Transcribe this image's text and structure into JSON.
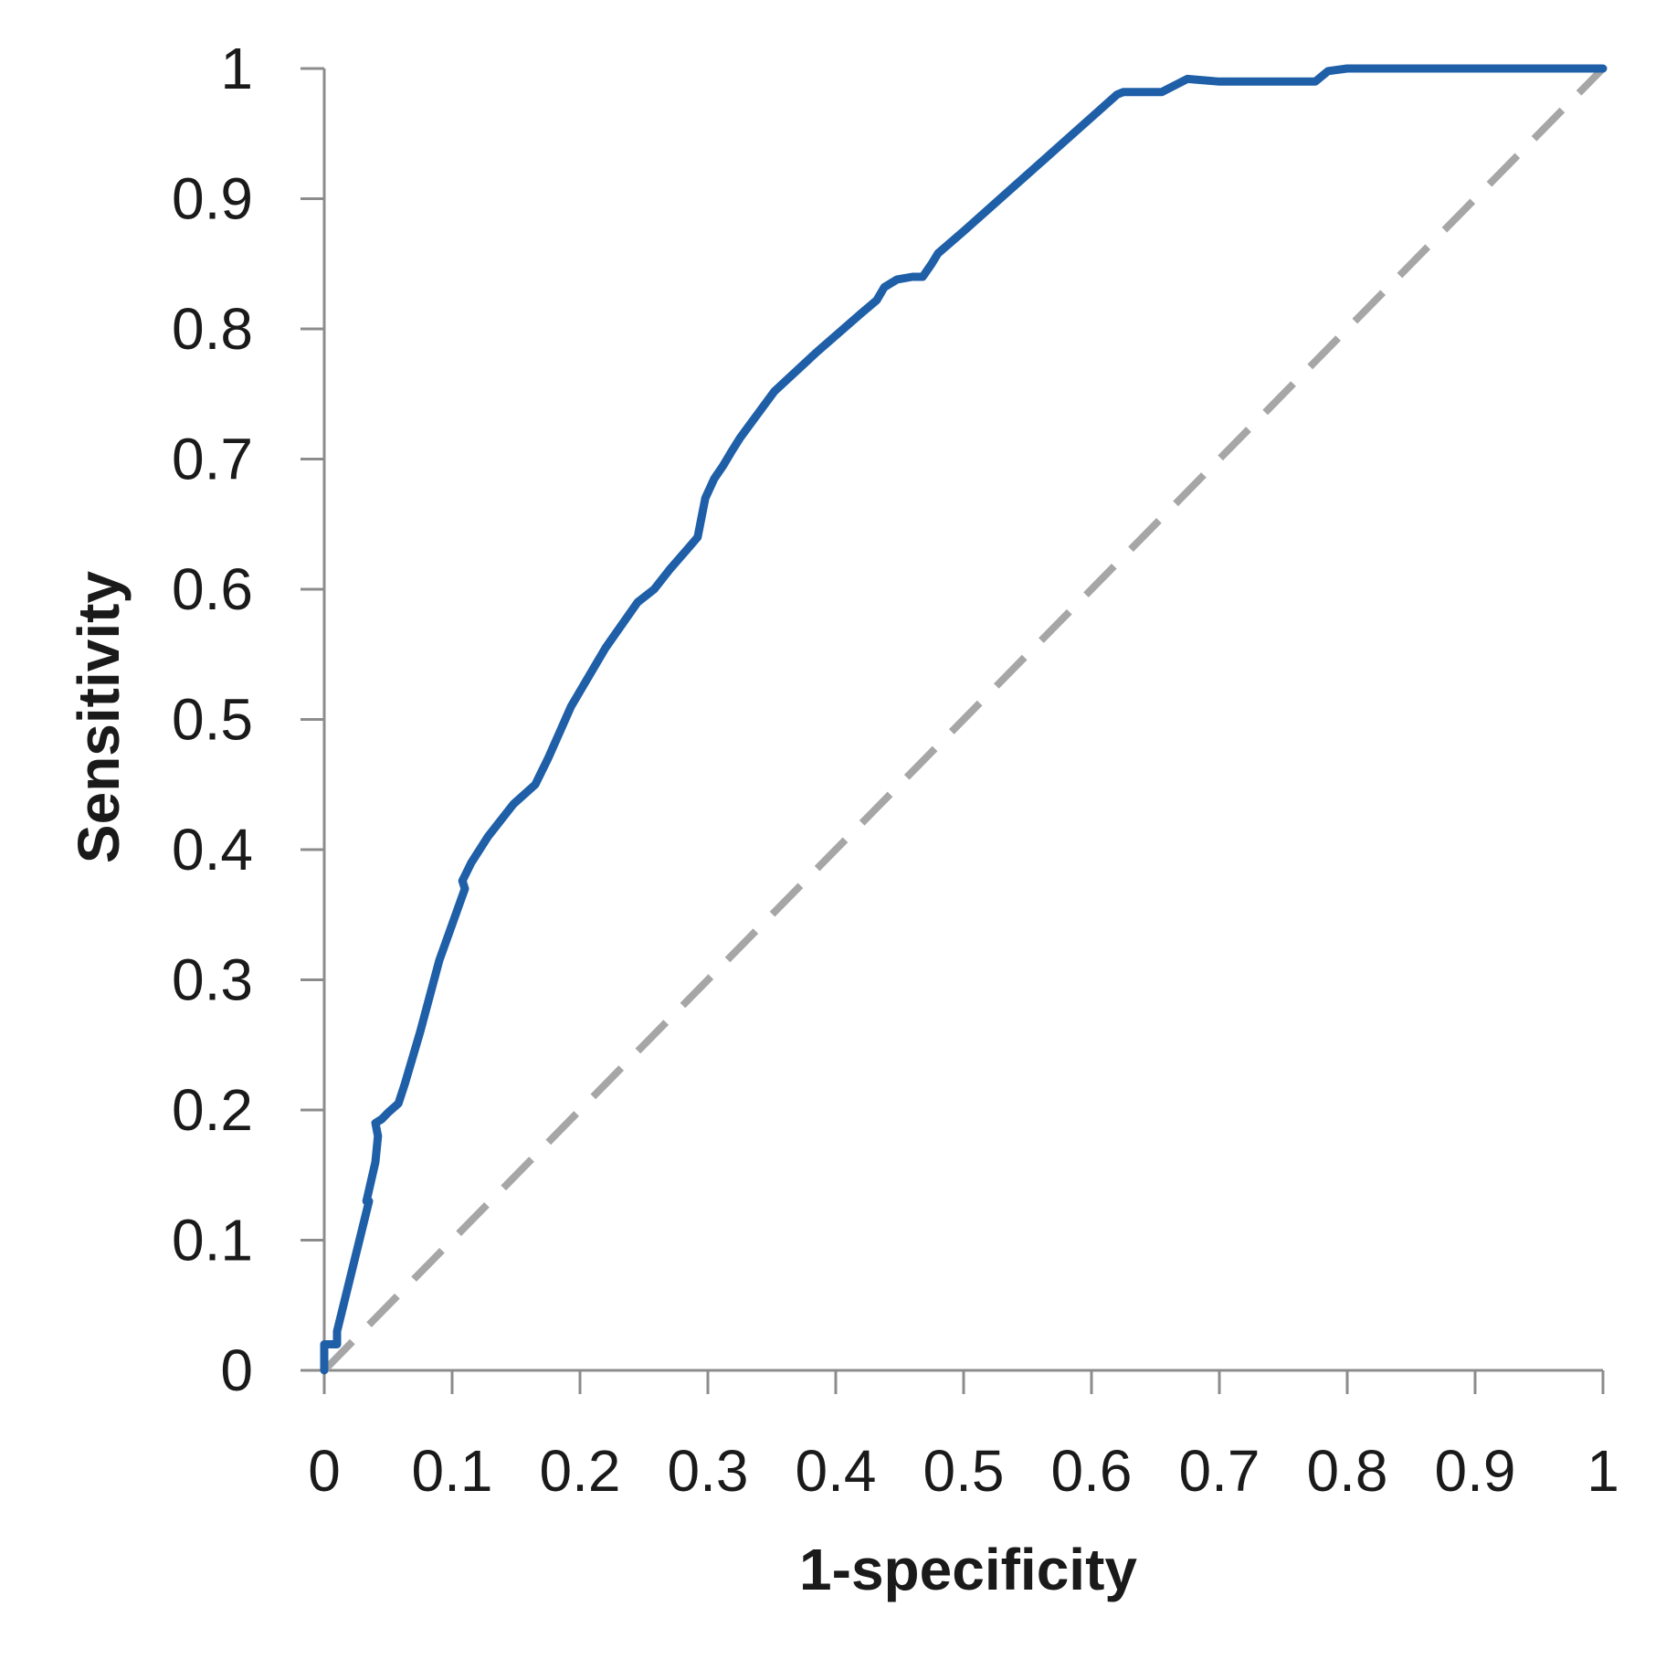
{
  "chart_data": {
    "type": "line",
    "title": "",
    "xlabel": "1-specificity",
    "ylabel": "Sensitivity",
    "xlim": [
      0,
      1
    ],
    "ylim": [
      0,
      1
    ],
    "x_ticks": [
      "0",
      "0.1",
      "0.2",
      "0.3",
      "0.4",
      "0.5",
      "0.6",
      "0.7",
      "0.8",
      "0.9",
      "1"
    ],
    "y_ticks": [
      "0",
      "0.1",
      "0.2",
      "0.3",
      "0.4",
      "0.5",
      "0.6",
      "0.7",
      "0.8",
      "0.9",
      "1"
    ],
    "grid": false,
    "legend": "none",
    "series": [
      {
        "style": "solid",
        "color": "#1f5fa8",
        "x": [
          0,
          0,
          0.01,
          0.01,
          0.02,
          0.03,
          0.035,
          0.033,
          0.04,
          0.042,
          0.04,
          0.045,
          0.05,
          0.058,
          0.063,
          0.075,
          0.09,
          0.11,
          0.108,
          0.115,
          0.128,
          0.148,
          0.165,
          0.17,
          0.175,
          0.193,
          0.22,
          0.245,
          0.258,
          0.27,
          0.285,
          0.292,
          0.298,
          0.305,
          0.312,
          0.318,
          0.325,
          0.34,
          0.352,
          0.385,
          0.42,
          0.432,
          0.438,
          0.448,
          0.46,
          0.468,
          0.475,
          0.48,
          0.5,
          0.54,
          0.58,
          0.62,
          0.625,
          0.635,
          0.655,
          0.675,
          0.7,
          0.75,
          0.775,
          0.785,
          0.8,
          0.85,
          1
        ],
        "y": [
          0,
          0.02,
          0.02,
          0.03,
          0.07,
          0.11,
          0.13,
          0.13,
          0.16,
          0.18,
          0.19,
          0.193,
          0.198,
          0.205,
          0.22,
          0.26,
          0.315,
          0.37,
          0.376,
          0.39,
          0.41,
          0.435,
          0.45,
          0.46,
          0.47,
          0.51,
          0.555,
          0.59,
          0.6,
          0.615,
          0.632,
          0.64,
          0.67,
          0.685,
          0.695,
          0.705,
          0.716,
          0.736,
          0.752,
          0.782,
          0.812,
          0.822,
          0.832,
          0.838,
          0.84,
          0.84,
          0.85,
          0.858,
          0.875,
          0.91,
          0.945,
          0.98,
          0.982,
          0.982,
          0.982,
          0.992,
          0.99,
          0.99,
          0.99,
          0.998,
          1.0,
          1.0,
          1.0
        ]
      },
      {
        "style": "dashed",
        "color": "#a6a6a6",
        "x": [
          0,
          1
        ],
        "y": [
          0,
          1
        ]
      }
    ]
  }
}
